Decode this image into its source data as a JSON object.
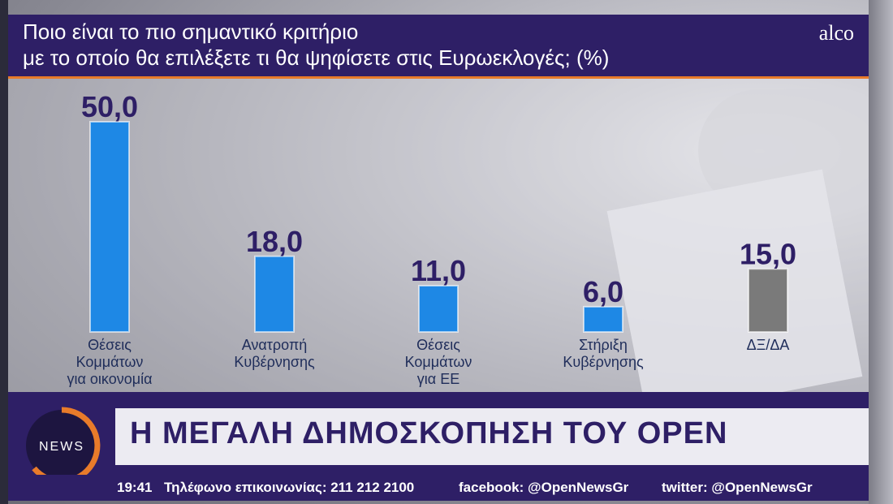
{
  "header": {
    "question_line1": "Ποιο είναι το πιο σημαντικό κριτήριο",
    "question_line2": "με το οποίο θα επιλέξετε τι θα ψηφίσετε στις Ευρωεκλογές; (%)",
    "logo": "alco"
  },
  "chart_data": {
    "type": "bar",
    "categories": [
      [
        "Θέσεις",
        "Κομμάτων",
        "για οικονομία"
      ],
      [
        "Ανατροπή",
        "Κυβέρνησης"
      ],
      [
        "Θέσεις",
        "Κομμάτων",
        "για ΕΕ"
      ],
      [
        "Στήριξη",
        "Κυβέρνησης"
      ],
      [
        "ΔΞ/ΔΑ"
      ]
    ],
    "values": [
      50.0,
      18.0,
      11.0,
      6.0,
      15.0
    ],
    "value_labels": [
      "50,0",
      "18,0",
      "11,0",
      "6,0",
      "15,0"
    ],
    "colors": [
      "#1e88e5",
      "#1e88e5",
      "#1e88e5",
      "#1e88e5",
      "#7a7a7a"
    ],
    "label_color": "#2e1f66",
    "ylim": [
      0,
      50
    ]
  },
  "banner": {
    "logo_text": "NEWS",
    "title": "Η ΜΕΓΑΛΗ ΔΗΜΟΣΚΟΠΗΣΗ ΤΟΥ OPEN"
  },
  "ticker": {
    "time": "19:41",
    "phone": "Τηλέφωνο επικοινωνίας: 211 212 2100",
    "facebook": "facebook: @OpenNewsGr",
    "twitter": "twitter: @OpenNewsGr"
  }
}
